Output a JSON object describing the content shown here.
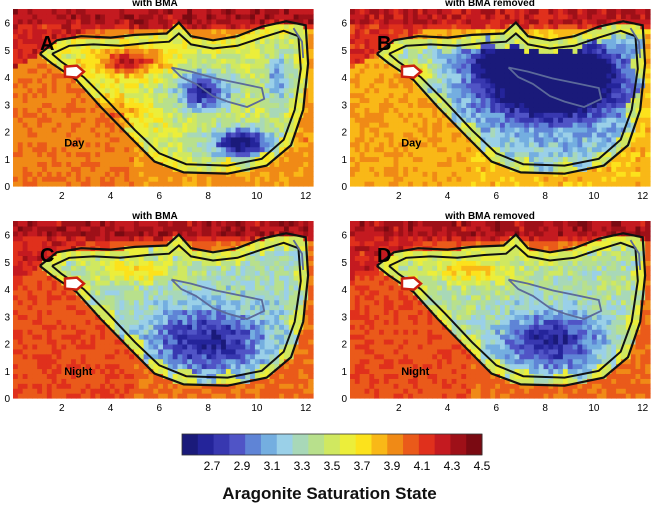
{
  "chart_data": [
    {
      "type": "heatmap",
      "panel": "A",
      "title": "with BMA",
      "period": "Day",
      "x_ticks": [
        2,
        4,
        6,
        8,
        10,
        12
      ],
      "y_ticks": [
        0,
        1,
        2,
        3,
        4,
        5,
        6
      ],
      "xlim": [
        0,
        12.3
      ],
      "ylim": [
        0,
        6.5
      ],
      "field": {
        "offshore_value": 4.2,
        "coastal_value": 3.6,
        "wedge_value": 3.95,
        "interior_value": 3.5,
        "patches": [
          {
            "x": 4.7,
            "y": 4.6,
            "sx": 1.6,
            "sy": 0.55,
            "amp": 0.7
          },
          {
            "x": 3.8,
            "y": 2.6,
            "sx": 1.4,
            "sy": 0.7,
            "amp": 0.5
          },
          {
            "x": 7.8,
            "y": 3.5,
            "sx": 1.1,
            "sy": 0.7,
            "amp": -0.85
          },
          {
            "x": 9.4,
            "y": 1.6,
            "sx": 1.3,
            "sy": 0.55,
            "amp": -1.0
          },
          {
            "x": 10.9,
            "y": 3.9,
            "sx": 0.6,
            "sy": 0.9,
            "amp": -0.5
          }
        ]
      }
    },
    {
      "type": "heatmap",
      "panel": "B",
      "title": "with BMA removed",
      "period": "Day",
      "x_ticks": [
        2,
        4,
        6,
        8,
        10,
        12
      ],
      "y_ticks": [
        0,
        1,
        2,
        3,
        4,
        5,
        6
      ],
      "xlim": [
        0,
        12.3
      ],
      "ylim": [
        0,
        6.5
      ],
      "field": {
        "offshore_value": 4.15,
        "coastal_value": 3.5,
        "wedge_value": 3.85,
        "interior_value": 3.2,
        "patches": [
          {
            "x": 8.3,
            "y": 3.9,
            "sx": 2.5,
            "sy": 1.3,
            "amp": -1.5
          },
          {
            "x": 6.4,
            "y": 4.6,
            "sx": 1.3,
            "sy": 0.6,
            "amp": -0.6
          },
          {
            "x": 2.7,
            "y": 4.2,
            "sx": 0.8,
            "sy": 0.5,
            "amp": 0.5
          }
        ]
      }
    },
    {
      "type": "heatmap",
      "panel": "C",
      "title": "with BMA",
      "period": "Night",
      "x_ticks": [
        2,
        4,
        6,
        8,
        10,
        12
      ],
      "y_ticks": [
        0,
        1,
        2,
        3,
        4,
        5,
        6
      ],
      "xlim": [
        0,
        12.3
      ],
      "ylim": [
        0,
        6.5
      ],
      "field": {
        "offshore_value": 4.2,
        "coastal_value": 3.55,
        "wedge_value": 4.05,
        "interior_value": 3.3,
        "patches": [
          {
            "x": 8.0,
            "y": 2.1,
            "sx": 2.3,
            "sy": 1.2,
            "amp": -0.65
          },
          {
            "x": 5.0,
            "y": 4.7,
            "sx": 1.8,
            "sy": 0.5,
            "amp": 0.4
          }
        ]
      }
    },
    {
      "type": "heatmap",
      "panel": "D",
      "title": "with BMA removed",
      "period": "Night",
      "x_ticks": [
        2,
        4,
        6,
        8,
        10,
        12
      ],
      "y_ticks": [
        0,
        1,
        2,
        3,
        4,
        5,
        6
      ],
      "xlim": [
        0,
        12.3
      ],
      "ylim": [
        0,
        6.5
      ],
      "field": {
        "offshore_value": 4.2,
        "coastal_value": 3.55,
        "wedge_value": 4.05,
        "interior_value": 3.35,
        "patches": [
          {
            "x": 8.3,
            "y": 2.1,
            "sx": 2.0,
            "sy": 1.1,
            "amp": -0.7
          },
          {
            "x": 5.0,
            "y": 4.7,
            "sx": 1.8,
            "sy": 0.5,
            "amp": 0.4
          }
        ]
      }
    }
  ],
  "colorbar": {
    "title": "Aragonite Saturation State",
    "tick_labels": [
      "2.7",
      "2.9",
      "3.1",
      "3.3",
      "3.5",
      "3.7",
      "3.9",
      "4.1",
      "4.3",
      "4.5"
    ],
    "range": [
      2.5,
      4.5
    ],
    "colors": [
      "#1a1a7a",
      "#24249a",
      "#3838b0",
      "#5054c6",
      "#5f84d6",
      "#74aee0",
      "#9ad0e8",
      "#a8d8b8",
      "#b8e08c",
      "#d0e860",
      "#ecee3a",
      "#fce21c",
      "#f9b817",
      "#f08a16",
      "#ea5a1a",
      "#e0301c",
      "#c41a20",
      "#9e1018",
      "#7a0a12"
    ]
  },
  "colors": {
    "shoreline": "#111111",
    "channel": "#5c6a9a",
    "marker_fill": "#ffffff",
    "marker_stroke": "#cc2010"
  }
}
